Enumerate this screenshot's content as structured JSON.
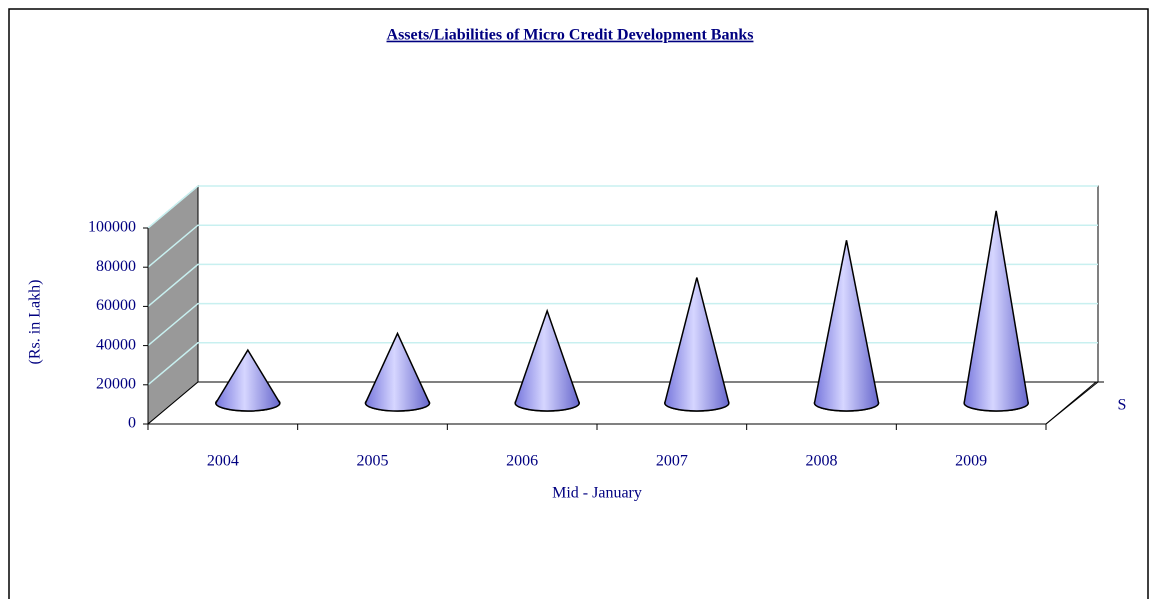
{
  "chart_data": {
    "type": "cone3d",
    "title": "Assets/Liabilities of Micro Credit Development Banks",
    "y_label": "(Rs. in Lakh)",
    "x_label": "Mid - January",
    "categories": [
      "2004",
      "2005",
      "2006",
      "2007",
      "2008",
      "2009"
    ],
    "series": [
      {
        "name": "S",
        "color": "#9999ff",
        "values": [
          27000,
          35500,
          47000,
          64000,
          83000,
          98000
        ]
      }
    ],
    "ylim": [
      0,
      100000
    ],
    "yticks": [
      0,
      20000,
      40000,
      60000,
      80000,
      100000
    ],
    "grid": true
  }
}
